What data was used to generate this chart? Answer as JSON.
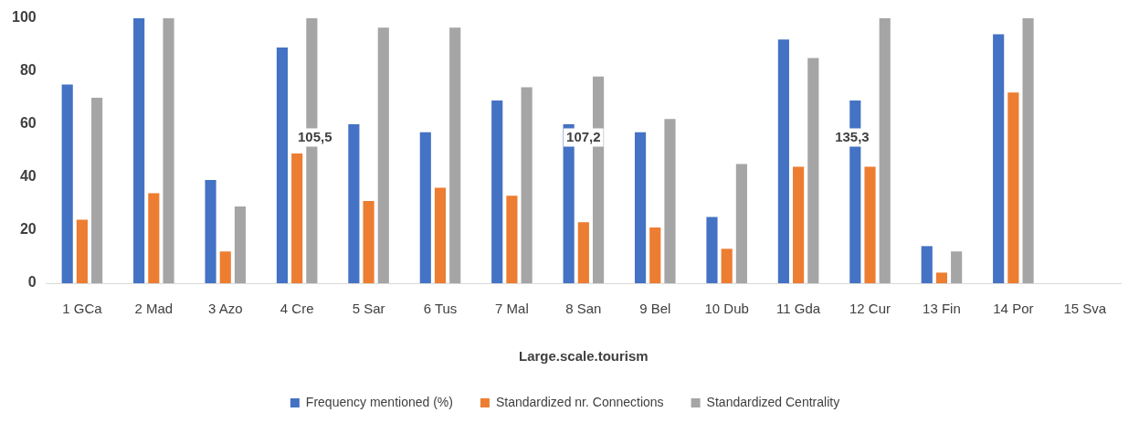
{
  "chart_data": {
    "type": "bar",
    "xlabel": "Large.scale.tourism",
    "categories": [
      "1 GCa",
      "2 Mad",
      "3 Azo",
      "4 Cre",
      "5 Sar",
      "6 Tus",
      "7 Mal",
      "8 San",
      "9 Bel",
      "10 Dub",
      "11 Gda",
      "12 Cur",
      "13 Fin",
      "14 Por",
      "15 Sva"
    ],
    "series": [
      {
        "name": "Frequency mentioned (%)",
        "color": "#4472c4",
        "values": [
          75,
          100,
          39,
          89,
          60,
          57,
          69,
          60,
          57,
          25,
          92,
          69,
          14,
          94,
          null
        ]
      },
      {
        "name": "Standardized nr. Connections",
        "color": "#ed7d31",
        "values": [
          24,
          34,
          12,
          49,
          31,
          36,
          33,
          23,
          21,
          13,
          44,
          44,
          4,
          72,
          null
        ]
      },
      {
        "name": "Standardized Centrality",
        "color": "#a5a5a5",
        "values": [
          70,
          100,
          29,
          100,
          96.5,
          96.5,
          74,
          78,
          62,
          45,
          85,
          100,
          12,
          100,
          null
        ]
      }
    ],
    "ylim": [
      0,
      100
    ],
    "yticks": [
      0,
      20,
      40,
      60,
      80,
      100
    ],
    "legend": "bottom",
    "annotations": [
      "105,5",
      "107,2",
      "135,3"
    ]
  }
}
